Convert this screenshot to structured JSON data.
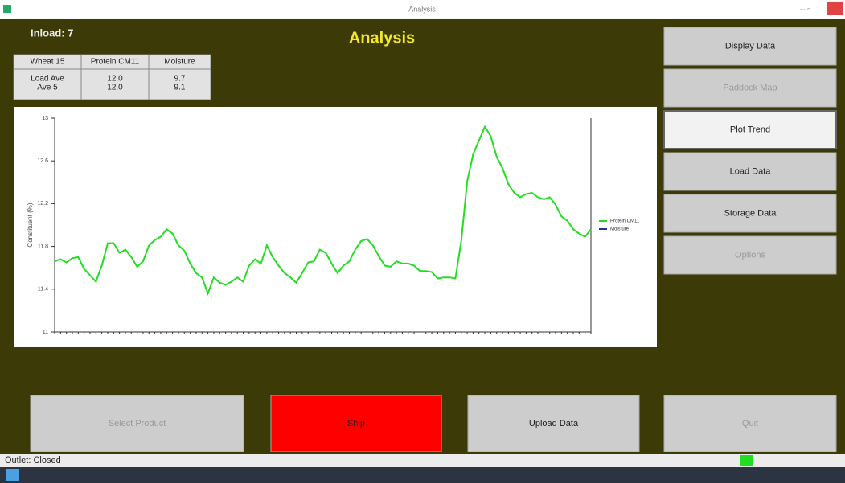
{
  "window": {
    "title": "Analysis"
  },
  "header": {
    "inload": "Inload: 7",
    "title": "Analysis"
  },
  "table": {
    "header": [
      "Wheat 15",
      "Protein CM11",
      "Moisture"
    ],
    "rows": [
      [
        "Load Ave",
        "12.0",
        "9.7"
      ],
      [
        "Ave 5",
        "12.0",
        "9.1"
      ]
    ]
  },
  "chart": {
    "type": "line",
    "y_label": "Constituent (%)",
    "ylim": [
      11,
      13
    ],
    "yticks": [
      11,
      11.4,
      11.8,
      12.2,
      12.6,
      13
    ],
    "series": [
      {
        "name": "Protein CM11",
        "color": "#22dd22",
        "values": [
          11.66,
          11.68,
          11.65,
          11.69,
          11.7,
          11.59,
          11.53,
          11.47,
          11.62,
          11.83,
          11.83,
          11.74,
          11.77,
          11.7,
          11.61,
          11.66,
          11.81,
          11.86,
          11.89,
          11.96,
          11.92,
          11.81,
          11.76,
          11.64,
          11.55,
          11.51,
          11.36,
          11.51,
          11.46,
          11.44,
          11.47,
          11.51,
          11.47,
          11.62,
          11.68,
          11.64,
          11.81,
          11.7,
          11.62,
          11.55,
          11.51,
          11.46,
          11.55,
          11.65,
          11.66,
          11.77,
          11.74,
          11.64,
          11.55,
          11.62,
          11.66,
          11.77,
          11.85,
          11.87,
          11.81,
          11.71,
          11.62,
          11.61,
          11.66,
          11.64,
          11.64,
          11.62,
          11.57,
          11.57,
          11.56,
          11.5,
          11.51,
          11.51,
          11.5,
          11.85,
          12.41,
          12.66,
          12.79,
          12.92,
          12.83,
          12.64,
          12.53,
          12.38,
          12.3,
          12.26,
          12.29,
          12.3,
          12.26,
          12.24,
          12.26,
          12.19,
          12.08,
          12.04,
          11.96,
          11.92,
          11.89,
          11.96
        ]
      },
      {
        "name": "Moisture",
        "color": "#2233aa"
      }
    ]
  },
  "buttons": {
    "side": [
      {
        "label": "Display Data",
        "enabled": true
      },
      {
        "label": "Paddock Map",
        "enabled": false
      },
      {
        "label": "Plot Trend",
        "enabled": true,
        "selected": true
      },
      {
        "label": "Load Data",
        "enabled": true
      },
      {
        "label": "Storage Data",
        "enabled": true
      },
      {
        "label": "Options",
        "enabled": false
      }
    ],
    "bottom": [
      {
        "label": "Select Product",
        "enabled": false
      },
      {
        "label": "Ship",
        "enabled": true,
        "color": "#ff0000"
      },
      {
        "label": "Upload Data",
        "enabled": true
      },
      {
        "label": "Quit",
        "enabled": false
      }
    ]
  },
  "status": {
    "outlet": "Outlet: Closed"
  }
}
